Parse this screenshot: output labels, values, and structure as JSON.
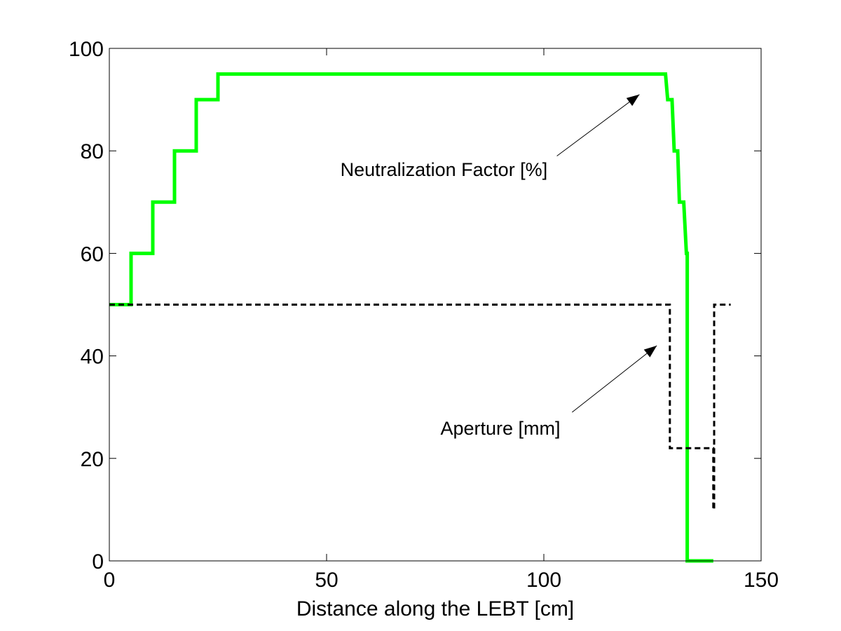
{
  "chart_data": {
    "type": "line",
    "title": "",
    "xlabel": "Distance along the LEBT [cm]",
    "ylabel": "",
    "xlim": [
      0,
      150
    ],
    "ylim": [
      0,
      100
    ],
    "xticks": [
      0,
      50,
      100,
      150
    ],
    "yticks": [
      0,
      20,
      40,
      60,
      80,
      100
    ],
    "grid": false,
    "legend": "none",
    "series": [
      {
        "name": "Neutralization Factor [%]",
        "color": "#00ff00",
        "style": "solid",
        "step": true,
        "x": [
          0,
          5,
          5,
          10,
          10,
          15,
          15,
          20,
          20,
          25,
          25,
          128,
          128.5,
          129.5,
          130,
          130.8,
          131.2,
          132.2,
          132.8,
          133,
          133,
          139
        ],
        "y": [
          50,
          50,
          60,
          60,
          70,
          70,
          80,
          80,
          90,
          90,
          95,
          95,
          90,
          90,
          80,
          80,
          70,
          70,
          60,
          60,
          0,
          0
        ]
      },
      {
        "name": "Aperture [mm]",
        "color": "#000000",
        "style": "dashed",
        "step": true,
        "x": [
          0,
          129,
          129,
          139,
          139,
          139.2,
          139.2,
          143
        ],
        "y": [
          50,
          50,
          22,
          22,
          10,
          10,
          50,
          50
        ]
      }
    ],
    "annotations": [
      {
        "text": "Neutralization Factor [%]",
        "text_at": [
          77,
          76.5
        ],
        "arrow_from": [
          103,
          79
        ],
        "arrow_to": [
          122,
          91
        ]
      },
      {
        "text": "Aperture [mm]",
        "text_at": [
          90,
          26
        ],
        "arrow_from": [
          106.5,
          29
        ],
        "arrow_to": [
          126,
          42
        ]
      }
    ]
  }
}
